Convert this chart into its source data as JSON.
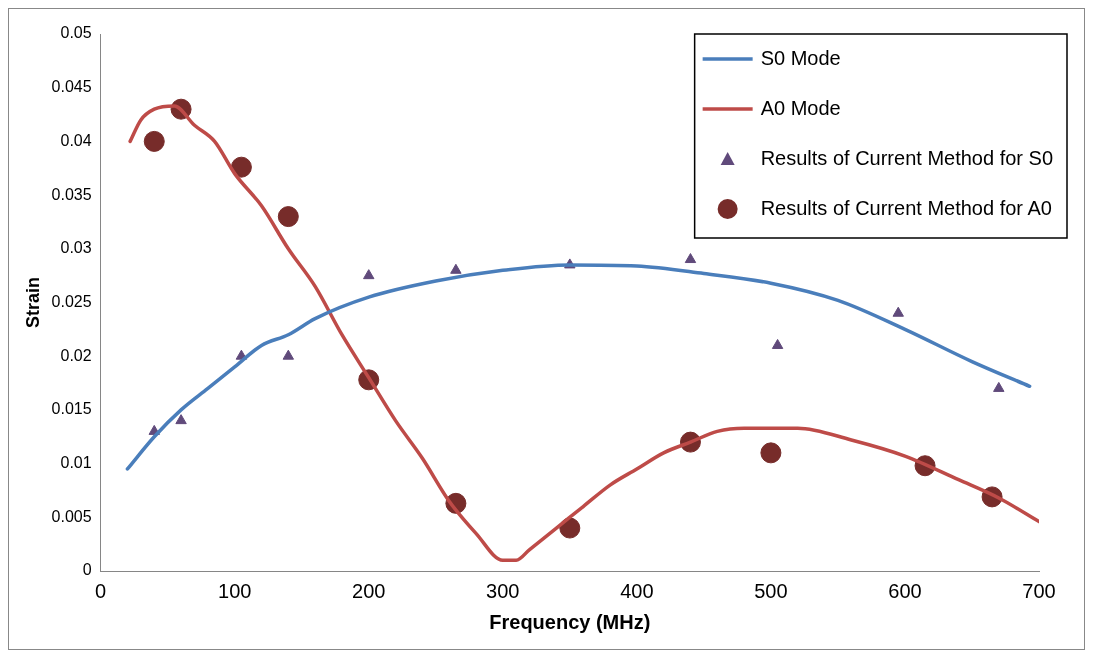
{
  "chart_data": {
    "type": "line",
    "xlabel": "Frequency (MHz)",
    "ylabel": "Strain",
    "xlim": [
      0,
      700
    ],
    "xticks": [
      0,
      100,
      200,
      300,
      400,
      500,
      600,
      700
    ],
    "ylim": [
      0,
      0.05
    ],
    "yticks": [
      0,
      0.005,
      0.01,
      0.015,
      0.02,
      0.025,
      0.03,
      0.035,
      0.04,
      0.045,
      0.05
    ],
    "grid": false,
    "legend": "top right",
    "series": [
      {
        "name": "S0 Mode",
        "color": "#4a7ebb",
        "marker": "none",
        "x": [
          20,
          40,
          60,
          80,
          100,
          120,
          140,
          160,
          200,
          250,
          300,
          350,
          400,
          450,
          500,
          550,
          600,
          650,
          693
        ],
        "values": [
          0.0095,
          0.0125,
          0.015,
          0.017,
          0.019,
          0.021,
          0.022,
          0.0235,
          0.0255,
          0.027,
          0.028,
          0.0285,
          0.0284,
          0.0277,
          0.0268,
          0.0252,
          0.0225,
          0.0195,
          0.0172
        ]
      },
      {
        "name": "A0 Mode",
        "color": "#be4b48",
        "marker": "none",
        "x": [
          22,
          30,
          40,
          55,
          70,
          85,
          100,
          120,
          140,
          160,
          180,
          200,
          220,
          240,
          260,
          280,
          300,
          310,
          320,
          340,
          360,
          380,
          400,
          420,
          440,
          460,
          480,
          520,
          560,
          600,
          640,
          670,
          700
        ],
        "values": [
          0.04,
          0.042,
          0.043,
          0.0433,
          0.0415,
          0.04,
          0.037,
          0.034,
          0.03,
          0.0265,
          0.022,
          0.018,
          0.014,
          0.0105,
          0.0065,
          0.0035,
          0.001,
          0.001,
          0.002,
          0.004,
          0.006,
          0.008,
          0.0095,
          0.011,
          0.012,
          0.013,
          0.0133,
          0.0133,
          0.0122,
          0.0107,
          0.0085,
          0.0068,
          0.0046
        ]
      },
      {
        "name": "Results of Current Method for S0",
        "type": "scatter",
        "color": "#604a7b",
        "marker": "triangle",
        "x": [
          40,
          60,
          105,
          140,
          200,
          265,
          350,
          440,
          505,
          595,
          670
        ],
        "values": [
          0.013,
          0.014,
          0.02,
          0.02,
          0.0275,
          0.028,
          0.0285,
          0.029,
          0.021,
          0.024,
          0.017
        ]
      },
      {
        "name": "Results of Current Method for A0",
        "type": "scatter",
        "color": "#772c2a",
        "marker": "circle",
        "x": [
          40,
          60,
          105,
          140,
          200,
          265,
          350,
          440,
          500,
          615,
          665
        ],
        "values": [
          0.04,
          0.043,
          0.0376,
          0.033,
          0.0178,
          0.0063,
          0.004,
          0.012,
          0.011,
          0.0098,
          0.0069
        ]
      }
    ]
  }
}
